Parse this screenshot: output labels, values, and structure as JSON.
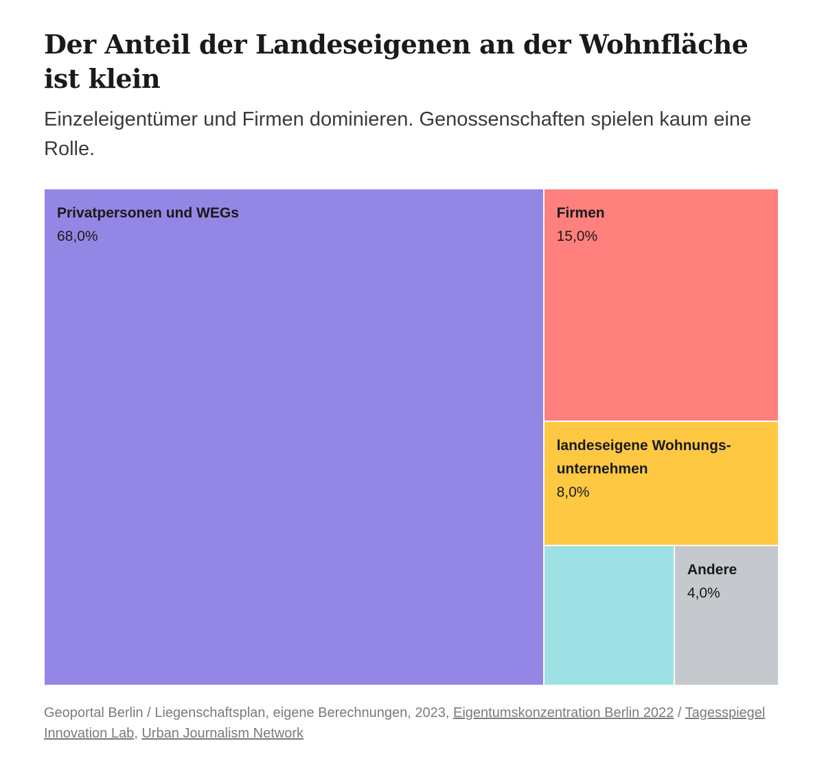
{
  "title": "Der Anteil der Landeseigenen an der Wohnfläche ist klein",
  "subtitle": "Einzeleigentümer und Firmen dominieren. Genossenschaften spielen kaum eine Rolle.",
  "source": {
    "text_1": "Geoportal Berlin / Liegenschaftsplan, eigene Berechnungen, 2023, ",
    "link_1": "Eigentumskonzentration Berlin 2022",
    "text_2": " / ",
    "link_2": "Tagesspiegel Innovation Lab",
    "text_3": ", ",
    "link_3": "Urban Journalism Network"
  },
  "chart_data": {
    "type": "treemap",
    "unit": "%",
    "items": [
      {
        "label": "Privatpersonen und WEGs",
        "value": 68.0,
        "value_label": "68,0%",
        "color": "#9386e4"
      },
      {
        "label": "Firmen",
        "value": 15.0,
        "value_label": "15,0%",
        "color": "#ff807c"
      },
      {
        "label": "landeseigene Wohnungs-unternehmen",
        "value": 8.0,
        "value_label": "8,0%",
        "color": "#fec843"
      },
      {
        "label": "",
        "value": 5.0,
        "value_label": "",
        "color": "#9ee1e4"
      },
      {
        "label": "Andere",
        "value": 4.0,
        "value_label": "4,0%",
        "color": "#c5c8cc"
      }
    ]
  }
}
